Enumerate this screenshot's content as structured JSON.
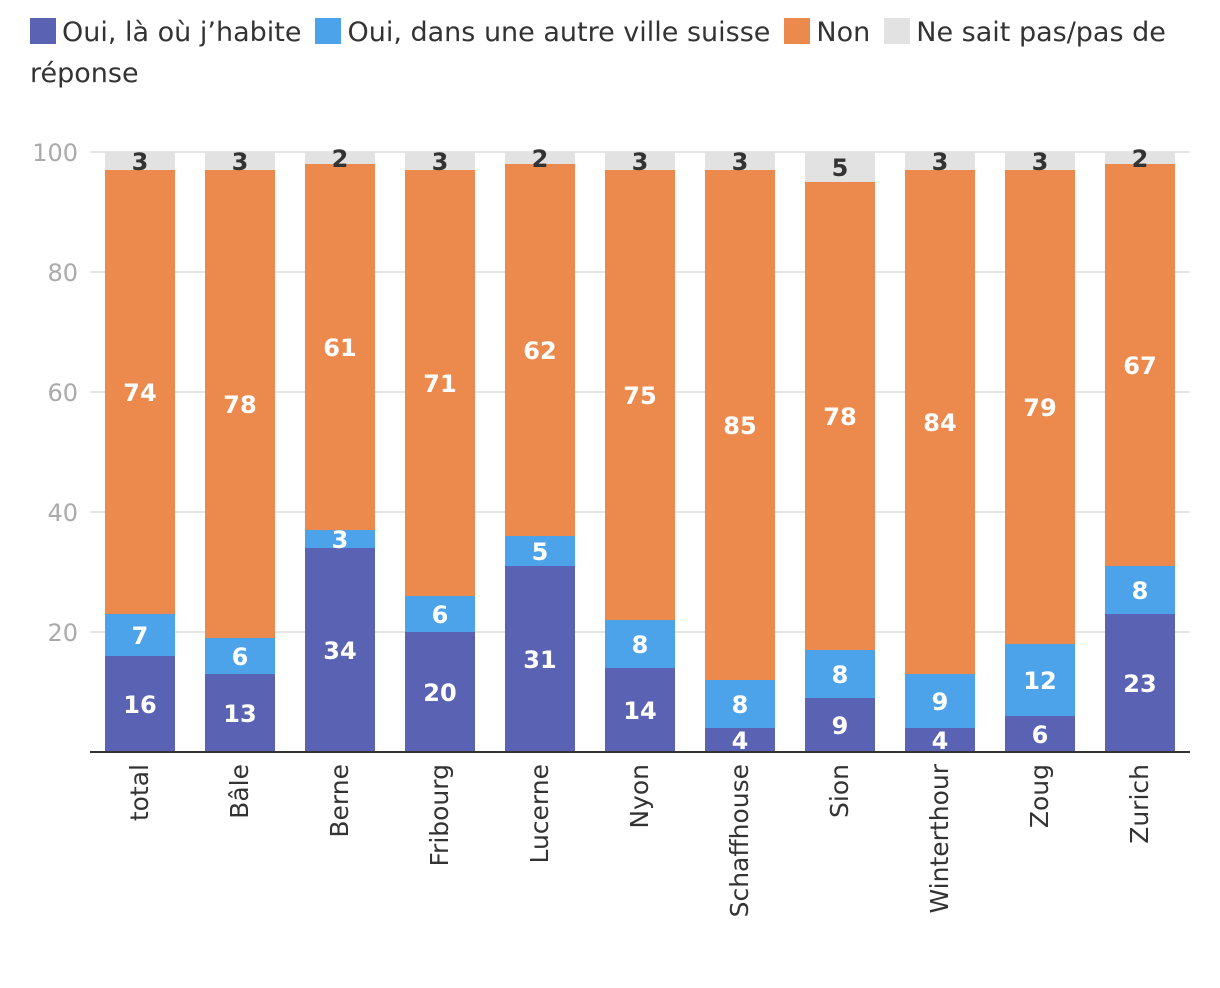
{
  "chart_data": {
    "type": "stacked-bar",
    "title": "",
    "xlabel": "",
    "ylabel": "",
    "ylim": [
      0,
      100
    ],
    "yticks": [
      20,
      40,
      60,
      80,
      100
    ],
    "categories": [
      "total",
      "Bâle",
      "Berne",
      "Fribourg",
      "Lucerne",
      "Nyon",
      "Schaffhouse",
      "Sion",
      "Winterthour",
      "Zoug",
      "Zurich"
    ],
    "series": [
      {
        "name": "Oui, là où j’habite",
        "color": "#5a62b3",
        "label_color": "#ffffff",
        "values": [
          16,
          13,
          34,
          20,
          31,
          14,
          4,
          9,
          4,
          6,
          23
        ]
      },
      {
        "name": "Oui, dans une autre ville suisse",
        "color": "#4ca3ea",
        "label_color": "#ffffff",
        "values": [
          7,
          6,
          3,
          6,
          5,
          8,
          8,
          8,
          9,
          12,
          8
        ]
      },
      {
        "name": "Non",
        "color": "#ec8a4e",
        "label_color": "#ffffff",
        "values": [
          74,
          78,
          61,
          71,
          62,
          75,
          85,
          78,
          84,
          79,
          67
        ]
      },
      {
        "name": "Ne sait pas/pas de réponse",
        "color": "#e2e2e2",
        "label_color": "#333333",
        "values": [
          3,
          3,
          2,
          3,
          2,
          3,
          3,
          5,
          3,
          3,
          2
        ]
      }
    ],
    "legend": "top"
  }
}
